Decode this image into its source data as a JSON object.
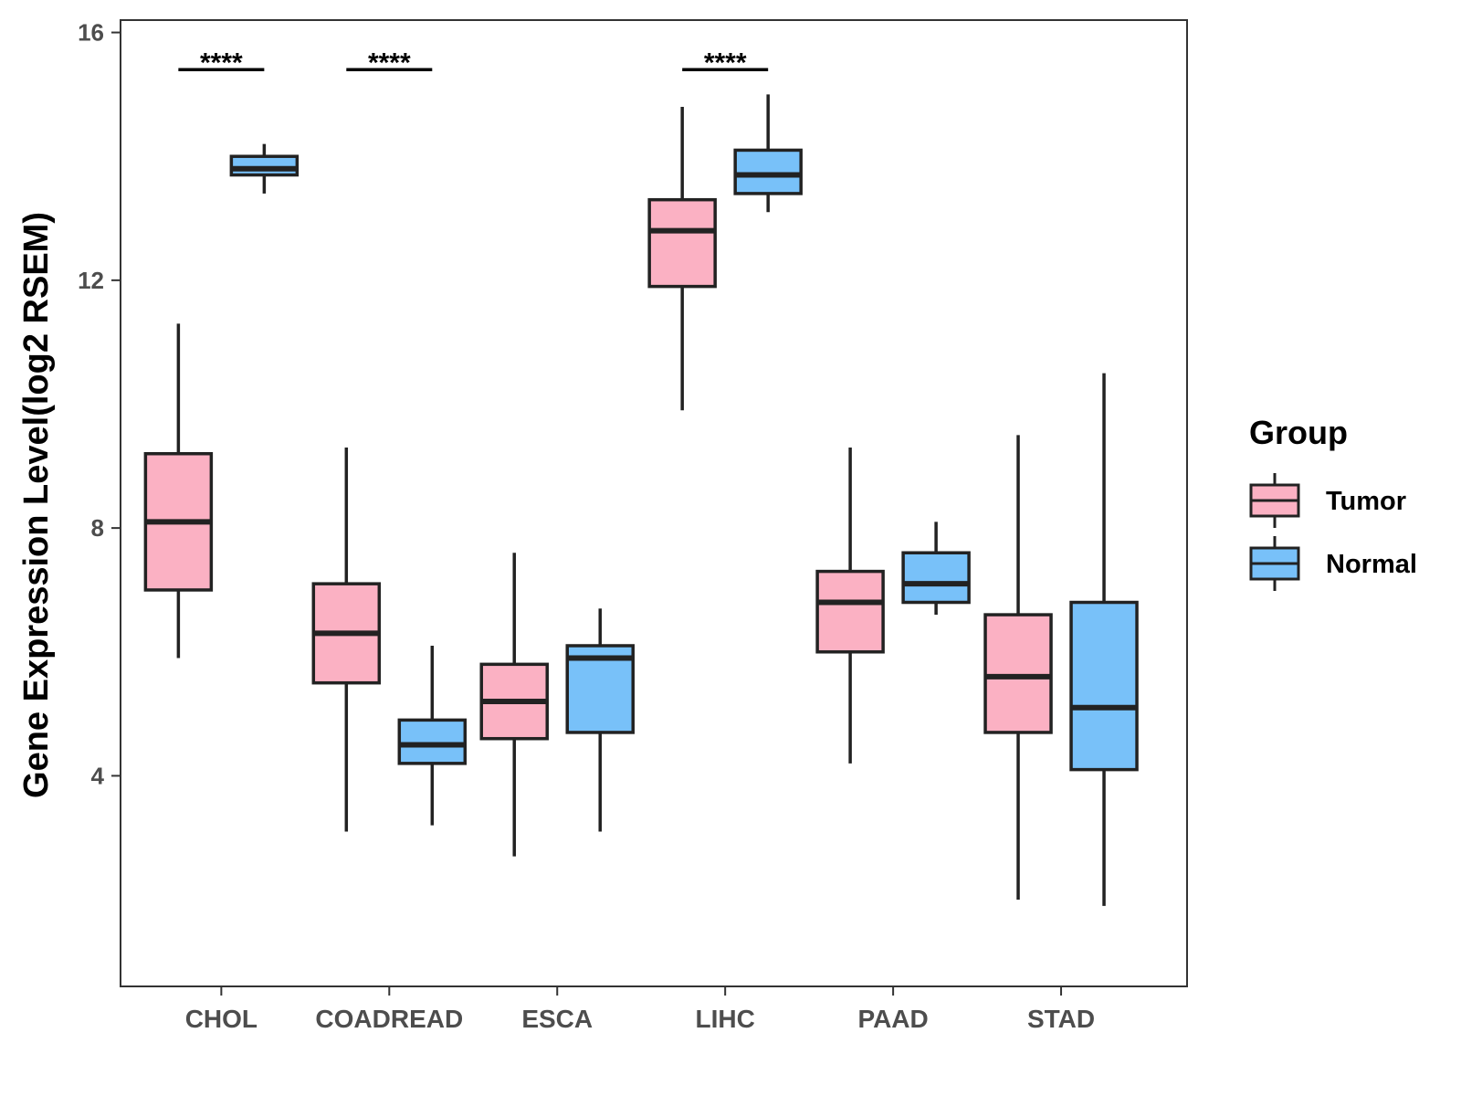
{
  "chart_data": {
    "type": "boxplot",
    "title": "",
    "xlabel": "",
    "ylabel": "Gene Expression Level(log2 RSEM)",
    "ylim": [
      0.6,
      16.2
    ],
    "yticks": [
      4,
      8,
      12,
      16
    ],
    "categories": [
      "CHOL",
      "COADREAD",
      "ESCA",
      "LIHC",
      "PAAD",
      "STAD"
    ],
    "legend": {
      "title": "Group",
      "position": "right",
      "entries": [
        {
          "name": "Tumor",
          "color": "#fbb1c3"
        },
        {
          "name": "Normal",
          "color": "#78c1f9"
        }
      ]
    },
    "series": [
      {
        "name": "Tumor",
        "color": "#fbb1c3",
        "boxes": [
          {
            "category": "CHOL",
            "whisker_low": 5.9,
            "q1": 7.0,
            "median": 8.1,
            "q3": 9.2,
            "whisker_high": 11.3
          },
          {
            "category": "COADREAD",
            "whisker_low": 3.1,
            "q1": 5.5,
            "median": 6.3,
            "q3": 7.1,
            "whisker_high": 9.3
          },
          {
            "category": "ESCA",
            "whisker_low": 2.7,
            "q1": 4.6,
            "median": 5.2,
            "q3": 5.8,
            "whisker_high": 7.6
          },
          {
            "category": "LIHC",
            "whisker_low": 9.9,
            "q1": 11.9,
            "median": 12.8,
            "q3": 13.3,
            "whisker_high": 14.8
          },
          {
            "category": "PAAD",
            "whisker_low": 4.2,
            "q1": 6.0,
            "median": 6.8,
            "q3": 7.3,
            "whisker_high": 9.3
          },
          {
            "category": "STAD",
            "whisker_low": 2.0,
            "q1": 4.7,
            "median": 5.6,
            "q3": 6.6,
            "whisker_high": 9.5
          }
        ]
      },
      {
        "name": "Normal",
        "color": "#78c1f9",
        "boxes": [
          {
            "category": "CHOL",
            "whisker_low": 13.4,
            "q1": 13.7,
            "median": 13.8,
            "q3": 14.0,
            "whisker_high": 14.2
          },
          {
            "category": "COADREAD",
            "whisker_low": 3.2,
            "q1": 4.2,
            "median": 4.5,
            "q3": 4.9,
            "whisker_high": 6.1
          },
          {
            "category": "ESCA",
            "whisker_low": 3.1,
            "q1": 4.7,
            "median": 5.9,
            "q3": 6.1,
            "whisker_high": 6.7
          },
          {
            "category": "LIHC",
            "whisker_low": 13.1,
            "q1": 13.4,
            "median": 13.7,
            "q3": 14.1,
            "whisker_high": 15.0
          },
          {
            "category": "PAAD",
            "whisker_low": 6.6,
            "q1": 6.8,
            "median": 7.1,
            "q3": 7.6,
            "whisker_high": 8.1
          },
          {
            "category": "STAD",
            "whisker_low": 1.9,
            "q1": 4.1,
            "median": 5.1,
            "q3": 6.8,
            "whisker_high": 10.5
          }
        ]
      }
    ],
    "annotations": [
      {
        "category": "CHOL",
        "text": "****",
        "y": 15.4
      },
      {
        "category": "COADREAD",
        "text": "****",
        "y": 15.4
      },
      {
        "category": "LIHC",
        "text": "****",
        "y": 15.4
      }
    ]
  }
}
